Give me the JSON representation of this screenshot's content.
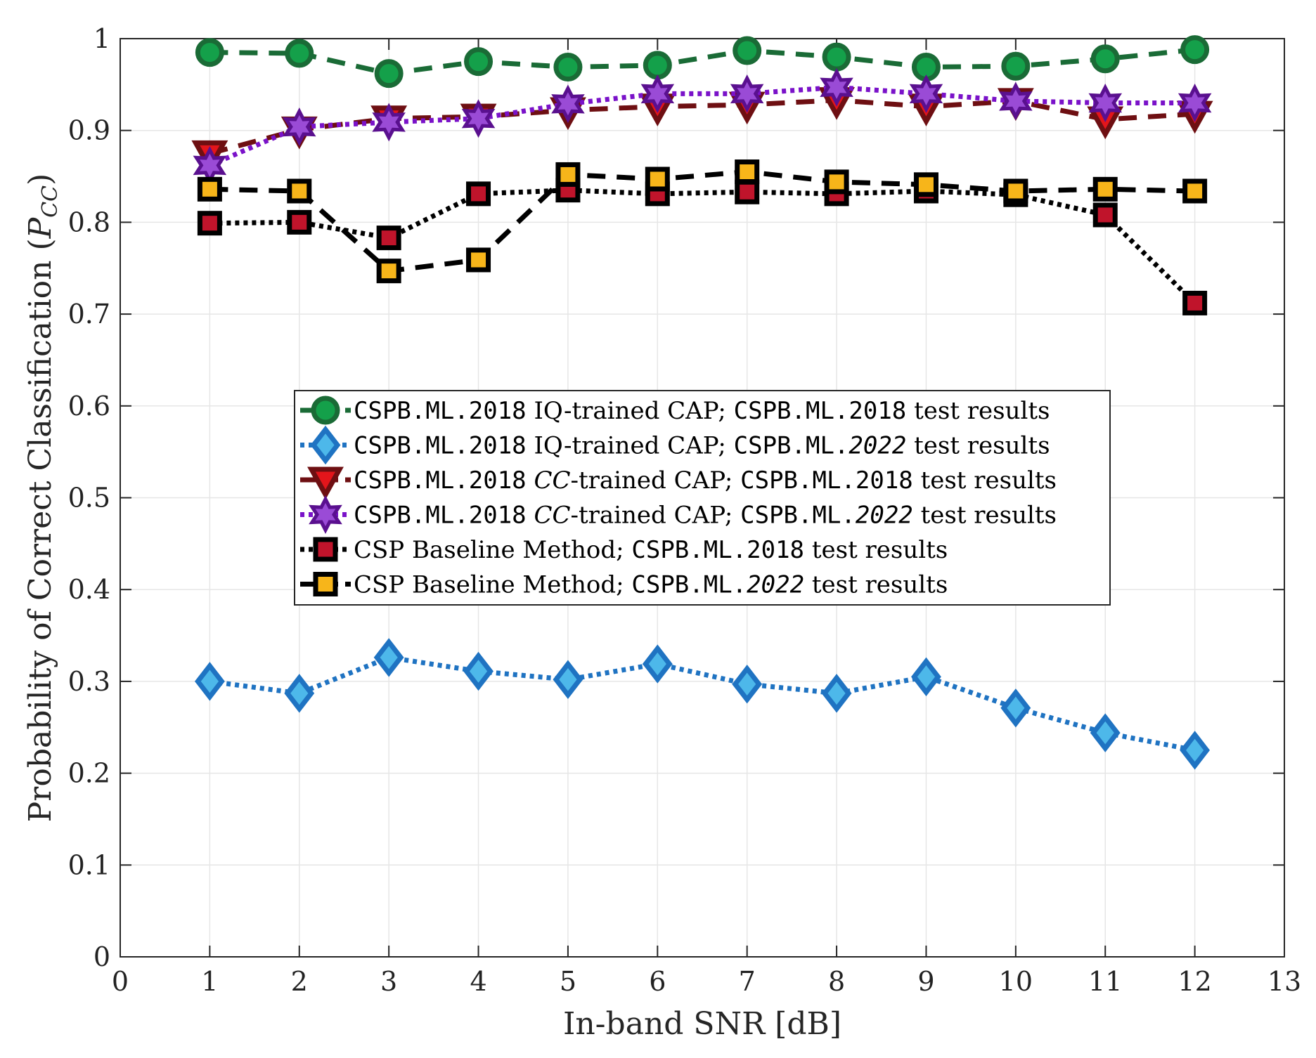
{
  "chart_data": {
    "type": "line",
    "xlabel": "In-band SNR [dB]",
    "ylabel": "Probability of Correct Classification (",
    "ylabel_symbol": "P",
    "ylabel_subscript": "CC",
    "ylabel_close": ")",
    "xlim": [
      0,
      13
    ],
    "ylim": [
      0,
      1
    ],
    "x_ticks": [
      0,
      1,
      2,
      3,
      4,
      5,
      6,
      7,
      8,
      9,
      10,
      11,
      12,
      13
    ],
    "x_tick_labels": [
      "0",
      "1",
      "2",
      "3",
      "4",
      "5",
      "6",
      "7",
      "8",
      "9",
      "10",
      "11",
      "12",
      "13"
    ],
    "y_ticks": [
      0,
      0.1,
      0.2,
      0.3,
      0.4,
      0.5,
      0.6,
      0.7,
      0.8,
      0.9,
      1
    ],
    "y_tick_labels": [
      "0",
      "0.1",
      "0.2",
      "0.3",
      "0.4",
      "0.5",
      "0.6",
      "0.7",
      "0.8",
      "0.9",
      "1"
    ],
    "grid": true,
    "legend_position": "center",
    "x": [
      1,
      2,
      3,
      4,
      5,
      6,
      7,
      8,
      9,
      10,
      11,
      12
    ],
    "series": [
      {
        "name": "CSPB.ML.2018 IQ-trained CAP; CSPB.ML.2018 test results",
        "legend_parts": [
          [
            "CSPB.ML.2018",
            "mono"
          ],
          [
            " IQ-trained CAP; ",
            ""
          ],
          [
            "CSPB.ML.2018",
            "mono"
          ],
          [
            " test results",
            ""
          ]
        ],
        "values": [
          0.985,
          0.984,
          0.962,
          0.975,
          0.969,
          0.971,
          0.987,
          0.98,
          0.969,
          0.97,
          0.978,
          0.988
        ],
        "line_color": "#1a6b36",
        "line_style": "dashed",
        "marker": "circle",
        "marker_fill": "#14a04a",
        "marker_edge": "#1a6b36"
      },
      {
        "name": "CSPB.ML.2018 IQ-trained CAP; CSPB.ML.2022 test results",
        "legend_parts": [
          [
            "CSPB.ML.2018",
            "mono"
          ],
          [
            " IQ-trained CAP; ",
            ""
          ],
          [
            "CSPB.ML.",
            "mono"
          ],
          [
            "2022",
            "mono ital"
          ],
          [
            " test results",
            ""
          ]
        ],
        "values": [
          0.3,
          0.287,
          0.326,
          0.311,
          0.302,
          0.319,
          0.297,
          0.287,
          0.305,
          0.271,
          0.244,
          0.225
        ],
        "line_color": "#1f73c2",
        "line_style": "dotted",
        "marker": "diamond",
        "marker_fill": "#4db8ea",
        "marker_edge": "#1f73c2"
      },
      {
        "name": "CSPB.ML.2018 CC-trained CAP; CSPB.ML.2018 test results",
        "legend_parts": [
          [
            "CSPB.ML.2018",
            "mono"
          ],
          [
            " ",
            ""
          ],
          [
            "CC",
            "ital"
          ],
          [
            "-trained CAP; ",
            ""
          ],
          [
            "CSPB.ML.2018",
            "mono"
          ],
          [
            " test results",
            ""
          ]
        ],
        "values": [
          0.875,
          0.901,
          0.913,
          0.915,
          0.922,
          0.926,
          0.928,
          0.933,
          0.926,
          0.932,
          0.912,
          0.918
        ],
        "line_color": "#6e0f12",
        "line_style": "dashed",
        "marker": "triangle-down",
        "marker_fill": "#e3151b",
        "marker_edge": "#6e0f12"
      },
      {
        "name": "CSPB.ML.2018 CC-trained CAP; CSPB.ML.2022 test results",
        "legend_parts": [
          [
            "CSPB.ML.2018",
            "mono"
          ],
          [
            " ",
            ""
          ],
          [
            "CC",
            "ital"
          ],
          [
            "-trained CAP; ",
            ""
          ],
          [
            "CSPB.ML.",
            "mono"
          ],
          [
            "2022",
            "mono ital"
          ],
          [
            " test results",
            ""
          ]
        ],
        "values": [
          0.862,
          0.904,
          0.909,
          0.913,
          0.929,
          0.94,
          0.94,
          0.947,
          0.94,
          0.932,
          0.93,
          0.93
        ],
        "line_color": "#7a12c9",
        "line_style": "dotted",
        "marker": "hexagram",
        "marker_fill": "#9a4bd6",
        "marker_edge": "#5a108f"
      },
      {
        "name": "CSP Baseline Method; CSPB.ML.2018 test results",
        "legend_parts": [
          [
            "CSP Baseline Method; ",
            ""
          ],
          [
            "CSPB.ML.2018",
            "mono"
          ],
          [
            " test results",
            ""
          ]
        ],
        "values": [
          0.799,
          0.8,
          0.783,
          0.831,
          0.835,
          0.831,
          0.833,
          0.831,
          0.834,
          0.83,
          0.808,
          0.712
        ],
        "line_color": "#000000",
        "line_style": "dotted",
        "marker": "square",
        "marker_fill": "#c0142b",
        "marker_edge": "#000000"
      },
      {
        "name": "CSP Baseline Method; CSPB.ML.2022 test results",
        "legend_parts": [
          [
            "CSP Baseline Method; ",
            ""
          ],
          [
            "CSPB.ML.",
            "mono"
          ],
          [
            "2022",
            "mono ital"
          ],
          [
            " test results",
            ""
          ]
        ],
        "values": [
          0.836,
          0.834,
          0.747,
          0.759,
          0.852,
          0.847,
          0.855,
          0.844,
          0.841,
          0.834,
          0.836,
          0.834
        ],
        "line_color": "#000000",
        "line_style": "dashed",
        "marker": "square",
        "marker_fill": "#f7b51a",
        "marker_edge": "#000000"
      }
    ]
  }
}
